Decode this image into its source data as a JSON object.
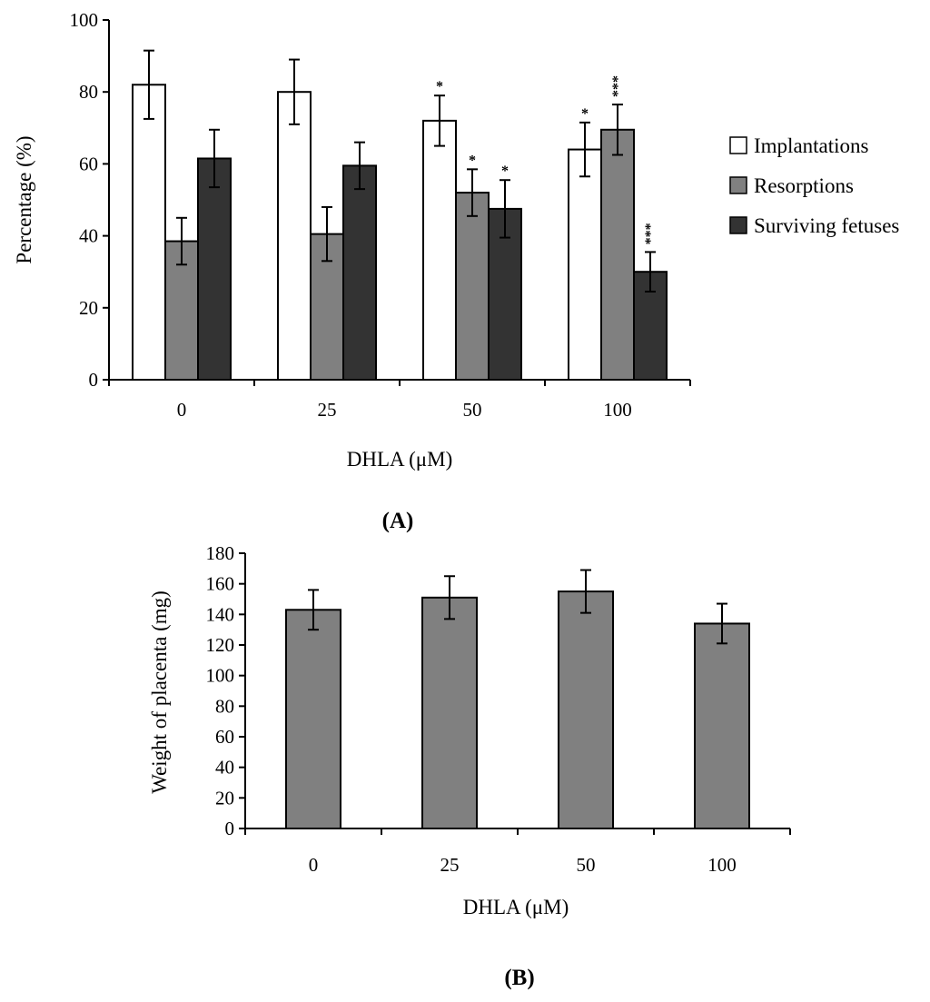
{
  "chart_data": [
    {
      "panel": "(A)",
      "type": "bar",
      "title": "",
      "xlabel": "DHLA (μM)",
      "ylabel": "Percentage (%)",
      "ylim": [
        0,
        100
      ],
      "yticks": [
        0,
        20,
        40,
        60,
        80,
        100
      ],
      "categories": [
        "0",
        "25",
        "50",
        "100"
      ],
      "series": [
        {
          "name": "Implantations",
          "color": "#ffffff",
          "values": [
            82,
            80,
            72,
            64
          ],
          "errors": [
            9.5,
            9,
            7,
            7.5
          ],
          "annotations": [
            "",
            "",
            "*",
            "*"
          ]
        },
        {
          "name": "Resorptions",
          "color": "#808080",
          "values": [
            38.5,
            40.5,
            52,
            69.5
          ],
          "errors": [
            6.5,
            7.5,
            6.5,
            7
          ],
          "annotations": [
            "",
            "",
            "*",
            "***"
          ]
        },
        {
          "name": "Surviving fetuses",
          "color": "#333333",
          "values": [
            61.5,
            59.5,
            47.5,
            30
          ],
          "errors": [
            8,
            6.5,
            8,
            5.5
          ],
          "annotations": [
            "",
            "",
            "*",
            "***"
          ]
        }
      ],
      "legend": "right"
    },
    {
      "panel": "(B)",
      "type": "bar",
      "title": "",
      "xlabel": "DHLA (μM)",
      "ylabel": "Weight of placenta (mg)",
      "ylim": [
        0,
        180
      ],
      "yticks": [
        0,
        20,
        40,
        60,
        80,
        100,
        120,
        140,
        160,
        180
      ],
      "categories": [
        "0",
        "25",
        "50",
        "100"
      ],
      "series": [
        {
          "name": "Weight of placenta",
          "color": "#808080",
          "values": [
            143,
            151,
            155,
            134
          ],
          "errors": [
            13,
            14,
            14,
            13
          ]
        }
      ]
    }
  ]
}
